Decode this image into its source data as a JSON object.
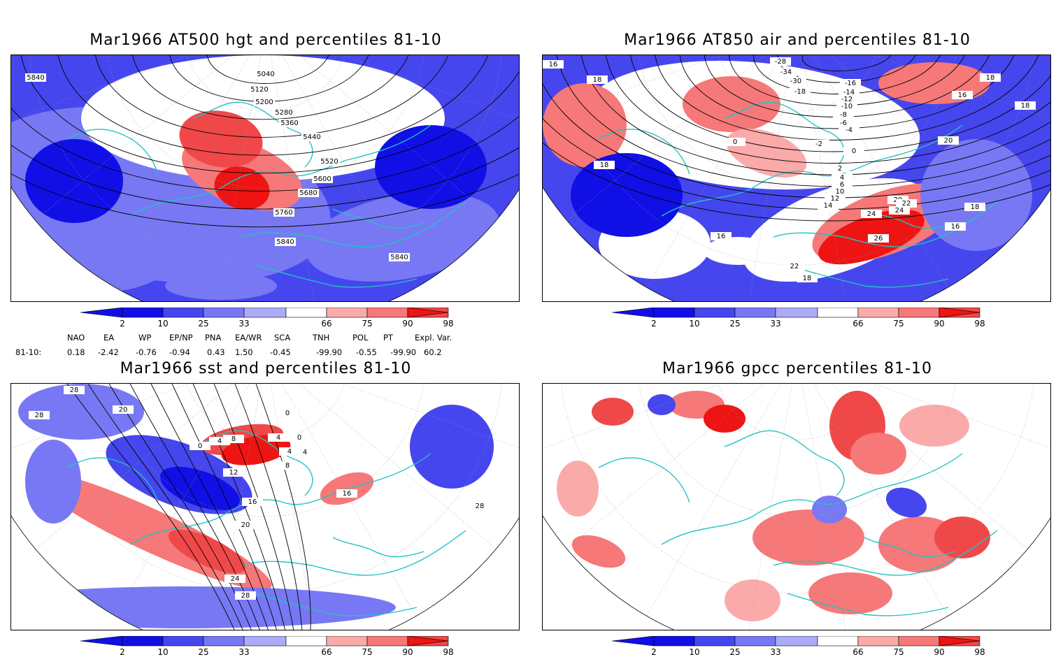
{
  "panels": [
    {
      "id": "p1",
      "title": "Mar1966 AT500 hgt and percentiles 81-10",
      "contour_labels": [
        "5840",
        "5040",
        "5120",
        "5200",
        "5280",
        "5360",
        "5440",
        "5520",
        "5600",
        "5680",
        "5760",
        "5840",
        "5840"
      ]
    },
    {
      "id": "p2",
      "title": "Mar1966 AT850 air and percentiles 81-10",
      "contour_labels": [
        "16",
        "18",
        "-28",
        "-34",
        "-30",
        "-18",
        "-16",
        "-14",
        "-12",
        "-10",
        "-8",
        "-6",
        "-4",
        "-2",
        "0",
        "0",
        "2",
        "4",
        "6",
        "10",
        "12",
        "14",
        "16",
        "18",
        "18",
        "18",
        "20",
        "20",
        "22",
        "24",
        "24",
        "26",
        "22",
        "16",
        "18",
        "18",
        "16"
      ]
    },
    {
      "id": "p3",
      "title": "Mar1966 sst and percentiles 81-10",
      "contour_labels": [
        "28",
        "28",
        "20",
        "0",
        "4",
        "8",
        "4",
        "0",
        "0",
        "4",
        "8",
        "12",
        "16",
        "16",
        "20",
        "24",
        "28",
        "28",
        "4"
      ]
    },
    {
      "id": "p4",
      "title": "Mar1966 gpcc percentiles 81-10",
      "contour_labels": []
    }
  ],
  "colorbar": {
    "labels": [
      "2",
      "10",
      "25",
      "33",
      "66",
      "75",
      "90",
      "98"
    ],
    "colors": {
      "blue_dark": "#1010e6",
      "blue_mid": "#4646ee",
      "blue_light": "#7878f4",
      "blue_pale": "#ababfa",
      "red_pale": "#fbaaaa",
      "red_light": "#f67878",
      "red_mid": "#f04848",
      "red_dark": "#ee1414"
    }
  },
  "teleconnections": {
    "header": [
      "NAO",
      "EA",
      "WP",
      "EP/NP",
      "PNA",
      "EA/WR",
      "SCA",
      "TNH",
      "POL",
      "PT",
      "Expl. Var."
    ],
    "row_label": "81-10:",
    "values": [
      "0.18",
      "-2.42",
      "-0.76",
      "-0.94",
      "0.43",
      "1.50",
      "-0.45",
      "-99.90",
      "-0.55",
      "-99.90",
      "60.2"
    ]
  },
  "map_colors": {
    "coast": "#22c3c3",
    "contour": "#000000",
    "grid": "#9a9a9a"
  }
}
